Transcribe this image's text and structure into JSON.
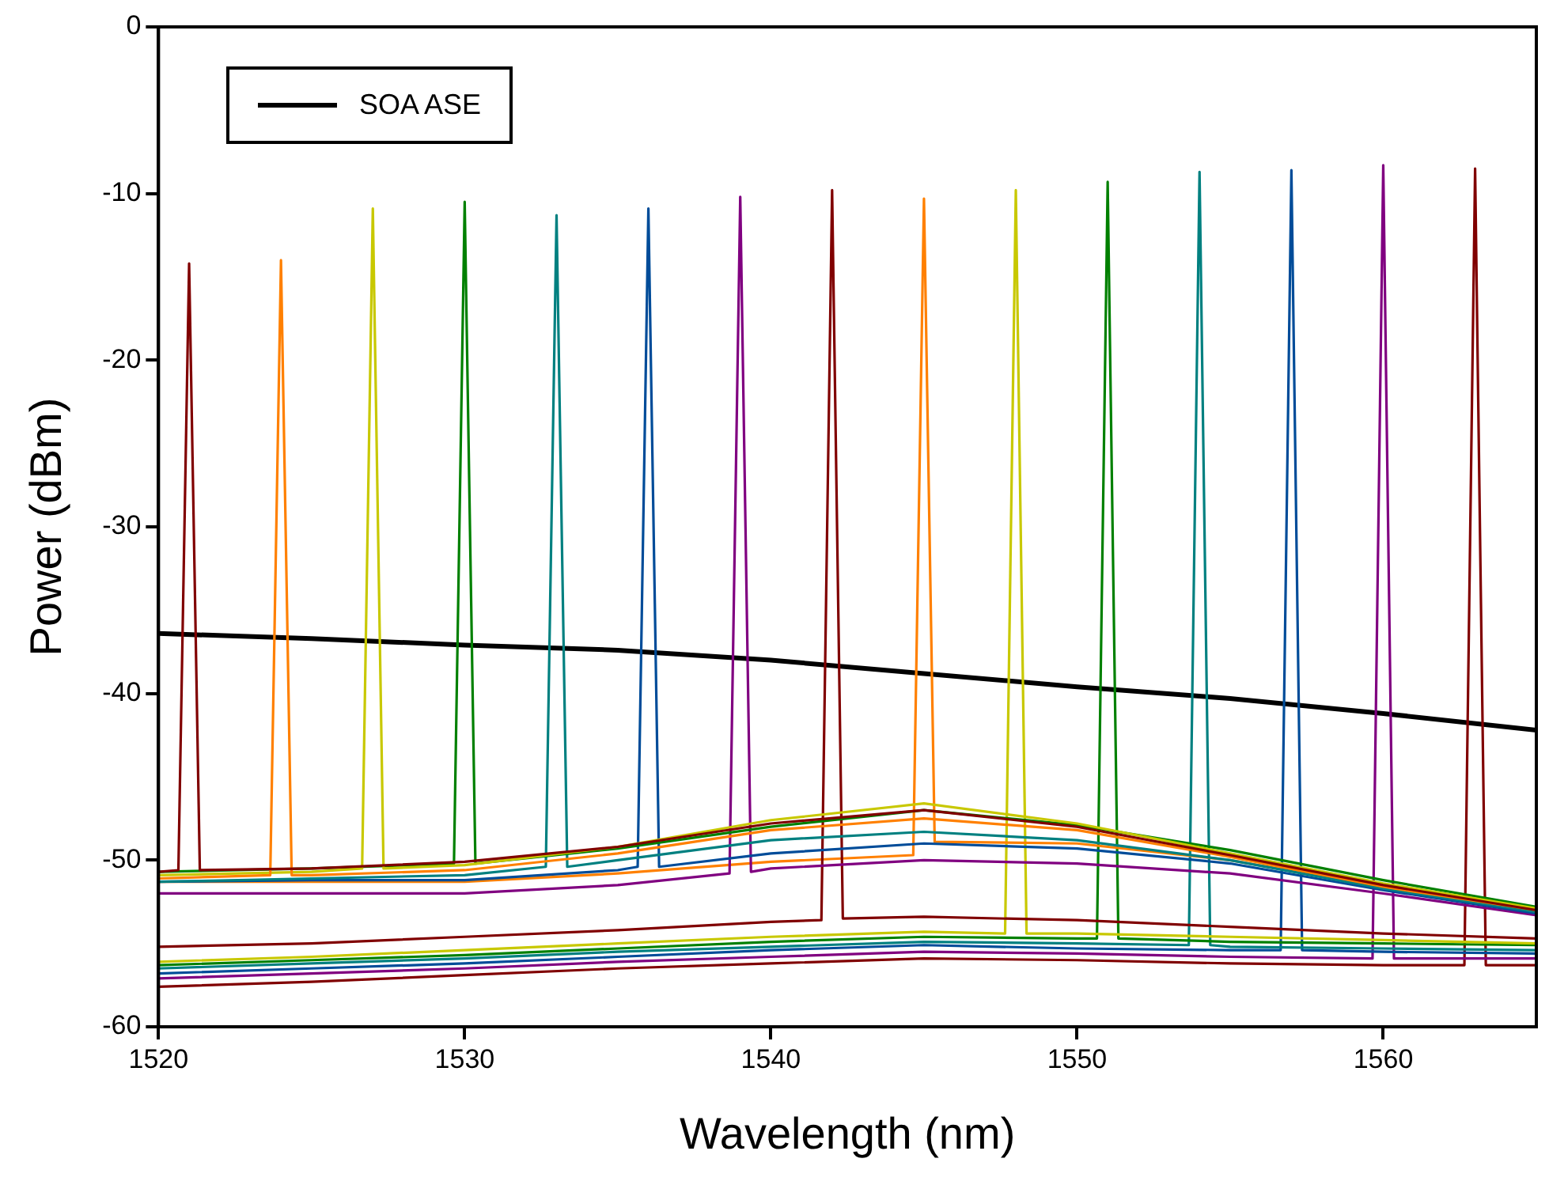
{
  "chart_data": {
    "type": "line",
    "xlabel": "Wavelength (nm)",
    "ylabel": "Power (dBm)",
    "xlim": [
      1520,
      1565
    ],
    "xticks": [
      1520,
      1530,
      1540,
      1550,
      1560
    ],
    "ylim": [
      -60,
      0
    ],
    "yticks": [
      0,
      -10,
      -20,
      -30,
      -40,
      -50,
      -60
    ],
    "grid": false,
    "legend": "top left",
    "marker": "none",
    "line_style": "solid",
    "series": [
      {
        "name": "SOA ASE",
        "color": "#000000",
        "x": [
          1520,
          1525,
          1530,
          1535,
          1540,
          1545,
          1550,
          1555,
          1560,
          1565
        ],
        "values": [
          -36.4,
          -36.7,
          -37.1,
          -37.4,
          -38.0,
          -38.8,
          -39.6,
          -40.3,
          -41.2,
          -42.2
        ]
      },
      {
        "color": "#800000",
        "x": [
          1520,
          1520.65,
          1521,
          1521.35,
          1525,
          1530,
          1535,
          1540,
          1545,
          1550,
          1555,
          1560,
          1565
        ],
        "values": [
          -50.7,
          -50.6,
          -14.2,
          -50.6,
          -50.5,
          -50.1,
          -49.2,
          -47.8,
          -47.0,
          -48.0,
          -49.7,
          -51.5,
          -53.0
        ]
      },
      {
        "color": "#ff8000",
        "x": [
          1520,
          1523.65,
          1524,
          1524.35,
          1525,
          1530,
          1535,
          1540,
          1545,
          1550,
          1555,
          1560,
          1565
        ],
        "values": [
          -51.1,
          -50.9,
          -14.0,
          -50.9,
          -50.9,
          -50.6,
          -49.6,
          -48.2,
          -47.5,
          -48.2,
          -49.8,
          -51.6,
          -53.0
        ]
      },
      {
        "color": "#c8c800",
        "x": [
          1520,
          1525,
          1526.65,
          1527,
          1527.35,
          1530,
          1535,
          1540,
          1545,
          1550,
          1555,
          1560,
          1565
        ],
        "values": [
          -50.9,
          -50.7,
          -50.5,
          -10.9,
          -50.5,
          -50.3,
          -49.2,
          -47.6,
          -46.6,
          -47.8,
          -49.6,
          -51.4,
          -52.9
        ]
      },
      {
        "color": "#008000",
        "x": [
          1520,
          1525,
          1529.65,
          1530,
          1530.35,
          1535,
          1540,
          1545,
          1550,
          1555,
          1560,
          1565
        ],
        "values": [
          -50.7,
          -50.5,
          -50.2,
          -10.5,
          -50.2,
          -49.3,
          -48.0,
          -47.0,
          -47.9,
          -49.4,
          -51.2,
          -52.8
        ]
      },
      {
        "color": "#008080",
        "x": [
          1520,
          1525,
          1530,
          1532.65,
          1533,
          1533.35,
          1535,
          1540,
          1545,
          1550,
          1555,
          1560,
          1565
        ],
        "values": [
          -51.3,
          -51.1,
          -50.9,
          -50.4,
          -11.3,
          -50.4,
          -50.0,
          -48.8,
          -48.3,
          -48.8,
          -50.0,
          -51.7,
          -53.1
        ]
      },
      {
        "color": "#004c99",
        "x": [
          1520,
          1525,
          1530,
          1535,
          1535.65,
          1536,
          1536.35,
          1540,
          1545,
          1550,
          1555,
          1560,
          1565
        ],
        "values": [
          -51.3,
          -51.2,
          -51.2,
          -50.6,
          -50.4,
          -10.9,
          -50.4,
          -49.6,
          -49.0,
          -49.3,
          -50.2,
          -51.8,
          -53.2
        ]
      },
      {
        "color": "#800080",
        "x": [
          1520,
          1525,
          1530,
          1535,
          1538.65,
          1539,
          1539.35,
          1540,
          1545,
          1550,
          1555,
          1560,
          1565
        ],
        "values": [
          -52.0,
          -52.0,
          -52.0,
          -51.5,
          -50.8,
          -10.2,
          -50.7,
          -50.5,
          -50.0,
          -50.2,
          -50.8,
          -52.0,
          -53.3
        ]
      },
      {
        "color": "#800000",
        "x": [
          1520,
          1525,
          1530,
          1535,
          1540,
          1541.65,
          1542,
          1542.35,
          1545,
          1550,
          1555,
          1560,
          1565
        ],
        "values": [
          -55.2,
          -55.0,
          -54.6,
          -54.2,
          -53.7,
          -53.6,
          -9.8,
          -53.5,
          -53.4,
          -53.6,
          -54.0,
          -54.4,
          -54.7
        ]
      },
      {
        "color": "#ff8000",
        "x": [
          1520,
          1525,
          1530,
          1535,
          1540,
          1544.65,
          1545,
          1545.35,
          1550,
          1555,
          1560,
          1565
        ],
        "values": [
          -51.3,
          -51.3,
          -51.3,
          -50.8,
          -50.1,
          -49.7,
          -10.3,
          -48.9,
          -49.0,
          -50.0,
          -51.6,
          -53.0
        ]
      },
      {
        "color": "#c8c800",
        "x": [
          1520,
          1525,
          1530,
          1535,
          1540,
          1545,
          1547.65,
          1548,
          1548.35,
          1550,
          1555,
          1560,
          1565
        ],
        "values": [
          -56.1,
          -55.8,
          -55.4,
          -55.0,
          -54.6,
          -54.3,
          -54.4,
          -9.8,
          -54.4,
          -54.4,
          -54.6,
          -54.8,
          -55.0
        ]
      },
      {
        "color": "#008000",
        "x": [
          1520,
          1525,
          1530,
          1535,
          1540,
          1545,
          1550,
          1550.65,
          1551,
          1551.35,
          1555,
          1560,
          1565
        ],
        "values": [
          -56.3,
          -56.0,
          -55.7,
          -55.3,
          -54.9,
          -54.6,
          -54.7,
          -54.7,
          -9.3,
          -54.7,
          -54.9,
          -55.0,
          -55.1
        ]
      },
      {
        "color": "#008080",
        "x": [
          1520,
          1525,
          1530,
          1535,
          1540,
          1545,
          1550,
          1553.65,
          1554,
          1554.35,
          1555,
          1560,
          1565
        ],
        "values": [
          -56.5,
          -56.2,
          -55.9,
          -55.5,
          -55.2,
          -54.9,
          -55.0,
          -55.1,
          -8.7,
          -55.1,
          -55.2,
          -55.3,
          -55.4
        ]
      },
      {
        "color": "#004c99",
        "x": [
          1520,
          1525,
          1530,
          1535,
          1540,
          1545,
          1550,
          1555,
          1556.65,
          1557,
          1557.35,
          1560,
          1565
        ],
        "values": [
          -56.8,
          -56.5,
          -56.2,
          -55.8,
          -55.4,
          -55.1,
          -55.3,
          -55.4,
          -55.4,
          -8.6,
          -55.4,
          -55.5,
          -55.6
        ]
      },
      {
        "color": "#800080",
        "x": [
          1520,
          1525,
          1530,
          1535,
          1540,
          1545,
          1550,
          1555,
          1559.65,
          1560,
          1560.35,
          1565
        ],
        "values": [
          -57.1,
          -56.8,
          -56.5,
          -56.1,
          -55.8,
          -55.5,
          -55.6,
          -55.8,
          -55.9,
          -8.3,
          -55.9,
          -55.9
        ]
      },
      {
        "color": "#800000",
        "x": [
          1520,
          1525,
          1530,
          1535,
          1540,
          1545,
          1550,
          1555,
          1560,
          1562.65,
          1563,
          1563.35,
          1565
        ],
        "values": [
          -57.6,
          -57.3,
          -56.9,
          -56.5,
          -56.2,
          -55.9,
          -56.0,
          -56.2,
          -56.3,
          -56.3,
          -8.5,
          -56.3,
          -56.3
        ]
      }
    ]
  }
}
